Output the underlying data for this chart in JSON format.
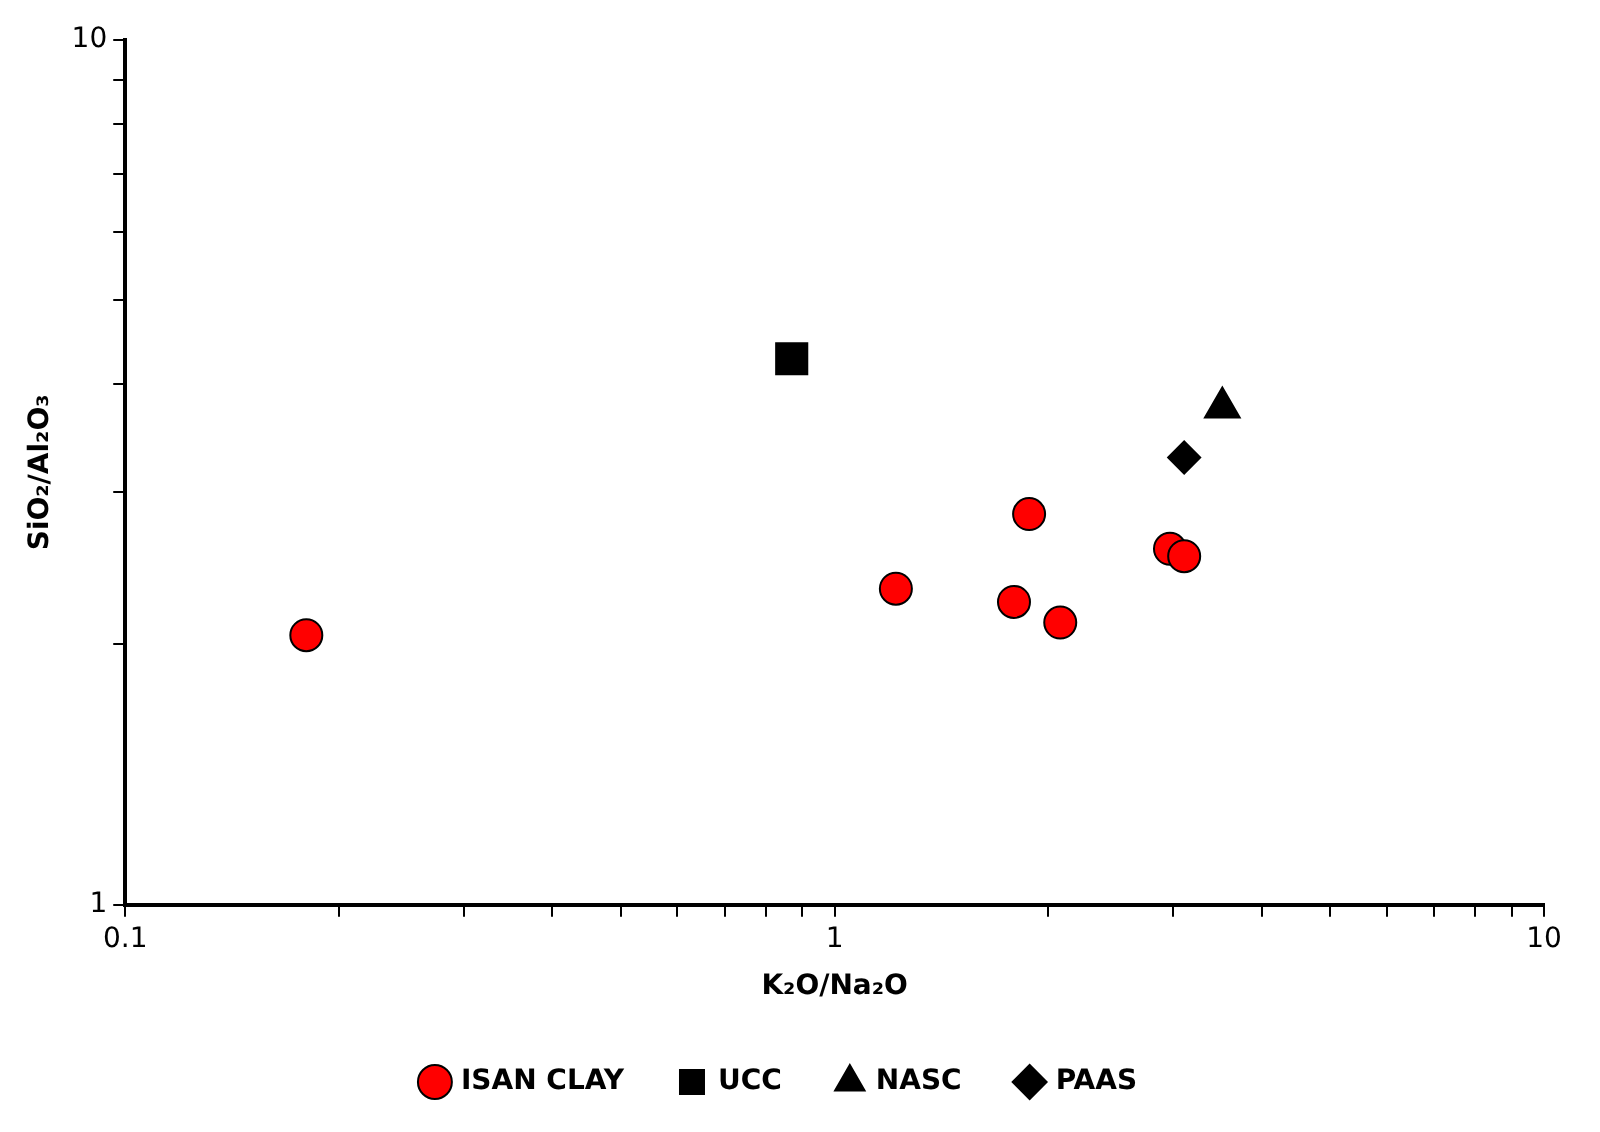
{
  "chart_data": {
    "type": "scatter",
    "xlabel": "K₂O/Na₂O",
    "ylabel": "SiO₂/Al₂O₃",
    "log": "xy",
    "grid": false,
    "legend": "bottom",
    "xlim": [
      0.1,
      10
    ],
    "ylim": [
      1,
      10
    ],
    "xticks": [
      0.1,
      {
        "value": 0.2,
        "label": null
      },
      {
        "value": 0.3,
        "label": null
      },
      {
        "value": 0.4,
        "label": null
      },
      {
        "value": 0.5,
        "label": null
      },
      {
        "value": 0.6,
        "label": null
      },
      {
        "value": 0.7,
        "label": null
      },
      {
        "value": 0.8,
        "label": null
      },
      {
        "value": 0.9,
        "label": null
      },
      1,
      {
        "value": 2,
        "label": null
      },
      {
        "value": 3,
        "label": null
      },
      {
        "value": 4,
        "label": null
      },
      {
        "value": 5,
        "label": null
      },
      {
        "value": 6,
        "label": null
      },
      {
        "value": 7,
        "label": null
      },
      {
        "value": 8,
        "label": null
      },
      {
        "value": 9,
        "label": null
      },
      10
    ],
    "yticks": [
      1,
      {
        "value": 2,
        "label": null
      },
      {
        "value": 3,
        "label": null
      },
      {
        "value": 4,
        "label": null
      },
      {
        "value": 5,
        "label": null
      },
      {
        "value": 6,
        "label": null
      },
      {
        "value": 7,
        "label": null
      },
      {
        "value": 8,
        "label": null
      },
      {
        "value": 9,
        "label": null
      },
      10
    ],
    "series": [
      {
        "name": "ISAN CLAY",
        "color": "#ff0000",
        "marker": "circle",
        "x": [
          0.18,
          1.22,
          1.88,
          1.79,
          2.08,
          2.97,
          3.11
        ],
        "values": [
          2.05,
          2.32,
          2.83,
          2.24,
          2.12,
          2.58,
          2.53
        ]
      },
      {
        "name": "UCC",
        "color": "#000000",
        "marker": "square",
        "x": [
          0.87
        ],
        "values": [
          4.28
        ]
      },
      {
        "name": "NASC",
        "color": "#000000",
        "marker": "triangle",
        "x": [
          3.52
        ],
        "values": [
          3.76
        ]
      },
      {
        "name": "PAAS",
        "color": "#000000",
        "marker": "diamond",
        "x": [
          3.11
        ],
        "values": [
          3.29
        ]
      }
    ]
  }
}
